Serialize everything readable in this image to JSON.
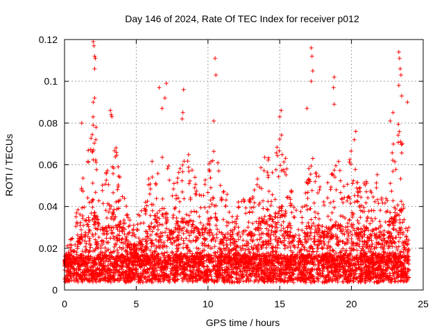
{
  "chart_data": {
    "type": "scatter",
    "title": "Day 146 of 2024, Rate Of TEC Index for receiver p012",
    "xlabel": "GPS time / hours",
    "ylabel": "ROTI / TECUs",
    "xlim": [
      0,
      25
    ],
    "ylim": [
      0,
      0.12
    ],
    "xticks": [
      0,
      5,
      10,
      15,
      20,
      25
    ],
    "yticks": [
      0,
      0.02,
      0.04,
      0.06,
      0.08,
      0.1,
      0.12
    ],
    "xtick_labels": [
      "0",
      "5",
      "10",
      "15",
      "20",
      "25"
    ],
    "ytick_labels": [
      "0",
      "0.02",
      "0.04",
      "0.06",
      "0.08",
      "0.1",
      "0.12"
    ],
    "grid": true,
    "marker": "+",
    "series_color": "#ff0000",
    "x_span_hours": [
      0,
      24
    ],
    "baseline_typical": 0.012,
    "envelope": [
      [
        0.0,
        0.018
      ],
      [
        0.5,
        0.026
      ],
      [
        1.0,
        0.045
      ],
      [
        1.5,
        0.06
      ],
      [
        2.0,
        0.085
      ],
      [
        2.5,
        0.05
      ],
      [
        3.0,
        0.06
      ],
      [
        3.5,
        0.075
      ],
      [
        4.0,
        0.055
      ],
      [
        4.5,
        0.035
      ],
      [
        5.0,
        0.035
      ],
      [
        5.5,
        0.04
      ],
      [
        6.0,
        0.06
      ],
      [
        6.5,
        0.07
      ],
      [
        7.0,
        0.075
      ],
      [
        7.5,
        0.05
      ],
      [
        8.0,
        0.06
      ],
      [
        8.5,
        0.07
      ],
      [
        9.0,
        0.055
      ],
      [
        9.5,
        0.05
      ],
      [
        10.0,
        0.06
      ],
      [
        10.5,
        0.07
      ],
      [
        11.0,
        0.05
      ],
      [
        11.5,
        0.045
      ],
      [
        12.0,
        0.04
      ],
      [
        12.5,
        0.05
      ],
      [
        13.0,
        0.045
      ],
      [
        13.5,
        0.055
      ],
      [
        14.0,
        0.07
      ],
      [
        14.5,
        0.065
      ],
      [
        15.0,
        0.08
      ],
      [
        15.5,
        0.06
      ],
      [
        16.0,
        0.045
      ],
      [
        16.5,
        0.04
      ],
      [
        17.0,
        0.06
      ],
      [
        17.5,
        0.065
      ],
      [
        18.0,
        0.05
      ],
      [
        18.5,
        0.055
      ],
      [
        19.0,
        0.065
      ],
      [
        19.5,
        0.05
      ],
      [
        20.0,
        0.07
      ],
      [
        20.5,
        0.05
      ],
      [
        21.0,
        0.055
      ],
      [
        21.5,
        0.05
      ],
      [
        22.0,
        0.06
      ],
      [
        22.5,
        0.05
      ],
      [
        23.0,
        0.075
      ],
      [
        23.5,
        0.085
      ],
      [
        24.0,
        0.03
      ]
    ],
    "outliers": [
      [
        2.0,
        0.119
      ],
      [
        2.05,
        0.117
      ],
      [
        2.1,
        0.112
      ],
      [
        2.15,
        0.111
      ],
      [
        2.1,
        0.106
      ],
      [
        2.0,
        0.09
      ],
      [
        2.1,
        0.092
      ],
      [
        1.2,
        0.08
      ],
      [
        2.2,
        0.078
      ],
      [
        3.2,
        0.086
      ],
      [
        3.25,
        0.084
      ],
      [
        3.3,
        0.083
      ],
      [
        6.6,
        0.097
      ],
      [
        7.1,
        0.099
      ],
      [
        7.0,
        0.092
      ],
      [
        6.8,
        0.087
      ],
      [
        8.3,
        0.096
      ],
      [
        8.25,
        0.085
      ],
      [
        8.2,
        0.082
      ],
      [
        10.5,
        0.111
      ],
      [
        10.55,
        0.103
      ],
      [
        10.4,
        0.081
      ],
      [
        15.0,
        0.083
      ],
      [
        15.1,
        0.086
      ],
      [
        17.2,
        0.116
      ],
      [
        17.25,
        0.112
      ],
      [
        17.3,
        0.105
      ],
      [
        17.2,
        0.1
      ],
      [
        16.9,
        0.087
      ],
      [
        18.8,
        0.102
      ],
      [
        18.75,
        0.097
      ],
      [
        18.8,
        0.089
      ],
      [
        20.3,
        0.076
      ],
      [
        20.2,
        0.072
      ],
      [
        23.3,
        0.114
      ],
      [
        23.35,
        0.111
      ],
      [
        23.4,
        0.106
      ],
      [
        23.45,
        0.103
      ],
      [
        23.3,
        0.098
      ],
      [
        23.5,
        0.093
      ],
      [
        23.9,
        0.09
      ],
      [
        22.9,
        0.085
      ],
      [
        22.7,
        0.081
      ]
    ]
  }
}
